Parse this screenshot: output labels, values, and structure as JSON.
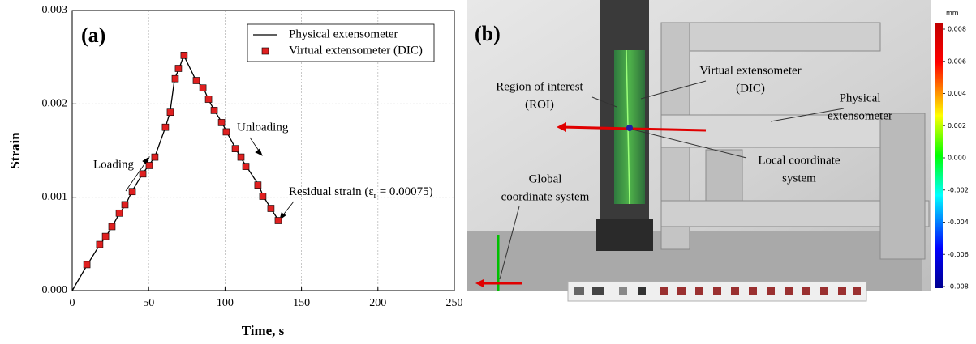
{
  "chart_data": {
    "type": "line_scatter",
    "panel_label": "(a)",
    "x_label": "Time, s",
    "y_label": "Strain",
    "xlim": [
      0,
      250
    ],
    "xticks": [
      0,
      50,
      100,
      150,
      200,
      250
    ],
    "ylim": [
      0,
      0.003
    ],
    "yticks": [
      {
        "value": 0,
        "label": "0.000"
      },
      {
        "value": 0.001,
        "label": "0.001"
      },
      {
        "value": 0.002,
        "label": "0.002"
      },
      {
        "value": 0.003,
        "label": "0.003"
      }
    ],
    "grid": true,
    "legend": "upper right",
    "series": [
      {
        "name": "Physical extensometer",
        "kind": "line",
        "color": "#000000",
        "x": [
          0,
          10,
          18,
          22,
          26,
          31,
          35,
          39,
          46,
          50,
          54,
          61,
          64,
          67,
          70,
          73,
          81,
          86,
          89,
          93,
          98,
          101,
          107,
          110,
          114,
          122,
          125,
          130,
          135
        ],
        "values": [
          0,
          0.00028,
          0.00049,
          0.00058,
          0.00068,
          0.00083,
          0.00092,
          0.00106,
          0.00125,
          0.00134,
          0.00143,
          0.00175,
          0.00191,
          0.00227,
          0.00238,
          0.00252,
          0.00225,
          0.00217,
          0.00205,
          0.00193,
          0.0018,
          0.0017,
          0.00152,
          0.00143,
          0.00133,
          0.00113,
          0.00101,
          0.00088,
          0.00075
        ]
      },
      {
        "name": "Virtual extensometer (DIC)",
        "kind": "scatter",
        "color": "#e02020",
        "x": [
          9.6,
          18,
          21.8,
          26,
          30.8,
          34.5,
          39.3,
          46.2,
          50.4,
          54.1,
          61,
          64.2,
          67.4,
          69.5,
          73.2,
          81.2,
          85.5,
          89.2,
          92.9,
          97.7,
          100.8,
          106.7,
          110.4,
          113.6,
          121.5,
          124.7,
          130,
          134.8
        ],
        "values": [
          0.000278,
          0.000494,
          0.00058,
          0.000685,
          0.00083,
          0.00092,
          0.00106,
          0.00125,
          0.00134,
          0.00143,
          0.00175,
          0.00191,
          0.00227,
          0.00238,
          0.00252,
          0.00225,
          0.00217,
          0.00205,
          0.00193,
          0.0018,
          0.0017,
          0.00152,
          0.00143,
          0.00133,
          0.00113,
          0.00101,
          0.00088,
          0.00075
        ]
      }
    ],
    "annotations": {
      "loading": "Loading",
      "unloading": "Unloading",
      "residual": [
        "Residual strain (ε",
        "r",
        " = 0.00075)"
      ]
    }
  },
  "photo": {
    "panel_label": "(b)",
    "labels": {
      "roi": [
        "Region of interest",
        "(ROI)"
      ],
      "virtual": [
        "Virtual extensometer",
        "(DIC)"
      ],
      "physical": [
        "Physical",
        "extensometer"
      ],
      "local": [
        "Local coordinate",
        "system"
      ],
      "global": [
        "Global",
        "coordinate system"
      ]
    },
    "colorbar": {
      "unit": "mm",
      "lim": [
        -0.008,
        0.008
      ],
      "ticks": [
        0.008,
        0.006,
        0.004,
        0.002,
        {
          "value": 0,
          "label": "0.000"
        },
        -0.002,
        -0.004,
        -0.006,
        -0.008
      ]
    }
  }
}
